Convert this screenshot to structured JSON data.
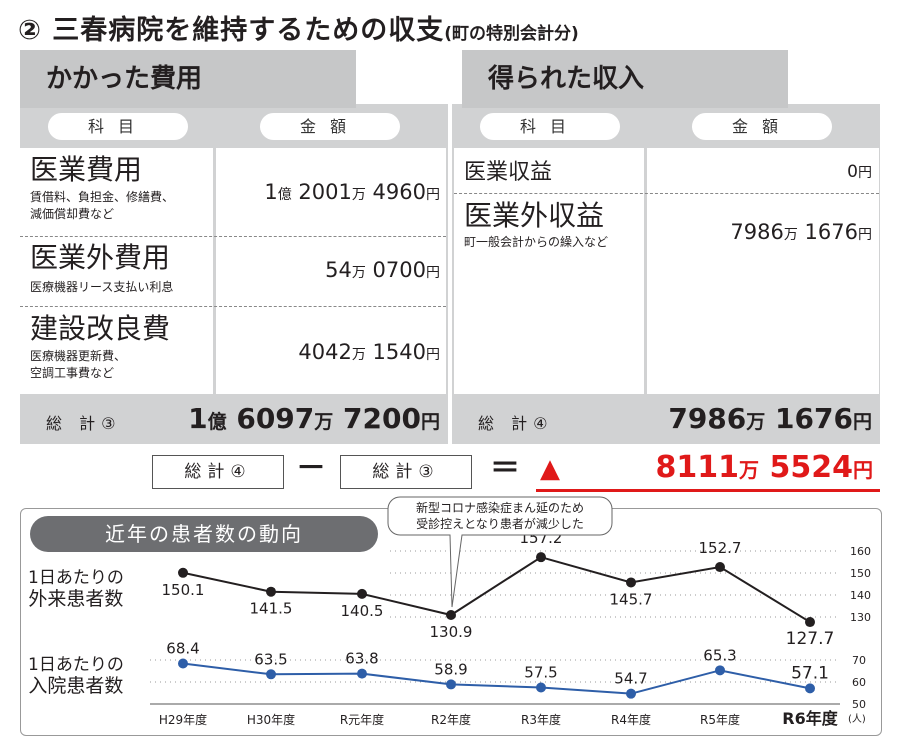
{
  "title": {
    "main": "② 三春病院を維持するための収支",
    "sub": "(町の特別会計分)"
  },
  "expense": {
    "tab": "かかった費用",
    "col_subject": "科目",
    "col_amount": "金額",
    "items": [
      {
        "name": "医業費用",
        "detail1": "賃借料、負担金、修繕費、",
        "detail2": "減価償却費など",
        "amount": [
          "1",
          "億",
          "2001",
          "万",
          "4960",
          "円"
        ]
      },
      {
        "name": "医業外費用",
        "detail1": "医療機器リース支払い利息",
        "detail2": "",
        "amount": [
          "",
          "",
          "54",
          "万",
          "0700",
          "円"
        ]
      },
      {
        "name": "建設改良費",
        "detail1": "医療機器更新費、",
        "detail2": "空調工事費など",
        "amount": [
          "",
          "",
          "4042",
          "万",
          "1540",
          "円"
        ]
      }
    ],
    "total_label": "総 計③",
    "total": [
      "1",
      "億",
      "6097",
      "万",
      "7200",
      "円"
    ]
  },
  "income": {
    "tab": "得られた収入",
    "col_subject": "科目",
    "col_amount": "金額",
    "items": [
      {
        "name": "医業収益",
        "detail1": "",
        "amount": [
          "",
          "",
          "",
          "",
          "0",
          "円"
        ]
      },
      {
        "name": "医業外収益",
        "detail1": "町一般会計からの繰入など",
        "amount": [
          "",
          "",
          "7986",
          "万",
          "1676",
          "円"
        ]
      }
    ],
    "total_label": "総 計④",
    "total": [
      "",
      "",
      "7986",
      "万",
      "1676",
      "円"
    ]
  },
  "formula": {
    "left": "総計④",
    "minus": "－",
    "right": "総計③",
    "equals": "＝",
    "triangle": "▲",
    "result": [
      "8111",
      "万",
      "5524",
      "円"
    ]
  },
  "chart_heading": "近年の患者数の動向",
  "callout": [
    "新型コロナ感染症まん延のため",
    "受診控えとなり患者が減少した"
  ],
  "colors": {
    "panel": "#d1d2d3",
    "negative": "#e01919",
    "outpatient": "#231f20",
    "inpatient": "#2e5ea8"
  },
  "chart_data": {
    "type": "line",
    "categories": [
      "H29年度",
      "H30年度",
      "R元年度",
      "R2年度",
      "R3年度",
      "R4年度",
      "R5年度",
      "R6年度"
    ],
    "unit_label": "(人)",
    "series": [
      {
        "name": "1日あたりの外来患者数",
        "name_lines": [
          "1日あたりの",
          "外来患者数"
        ],
        "values": [
          150.1,
          141.5,
          140.5,
          130.9,
          157.2,
          145.7,
          152.7,
          127.7
        ],
        "labels": [
          "150.1",
          "141.5",
          "140.5",
          "130.9",
          "157.2",
          "145.7",
          "152.7",
          "127.7"
        ],
        "axis_ticks": [
          "160",
          "150",
          "140",
          "130"
        ]
      },
      {
        "name": "1日あたりの入院患者数",
        "name_lines": [
          "1日あたりの",
          "入院患者数"
        ],
        "values": [
          68.4,
          63.5,
          63.8,
          58.9,
          57.5,
          54.7,
          65.3,
          57.1
        ],
        "labels": [
          "68.4",
          "63.5",
          "63.8",
          "58.9",
          "57.5",
          "54.7",
          "65.3",
          "57.1"
        ],
        "axis_ticks": [
          "70",
          "60",
          "50"
        ]
      }
    ]
  }
}
